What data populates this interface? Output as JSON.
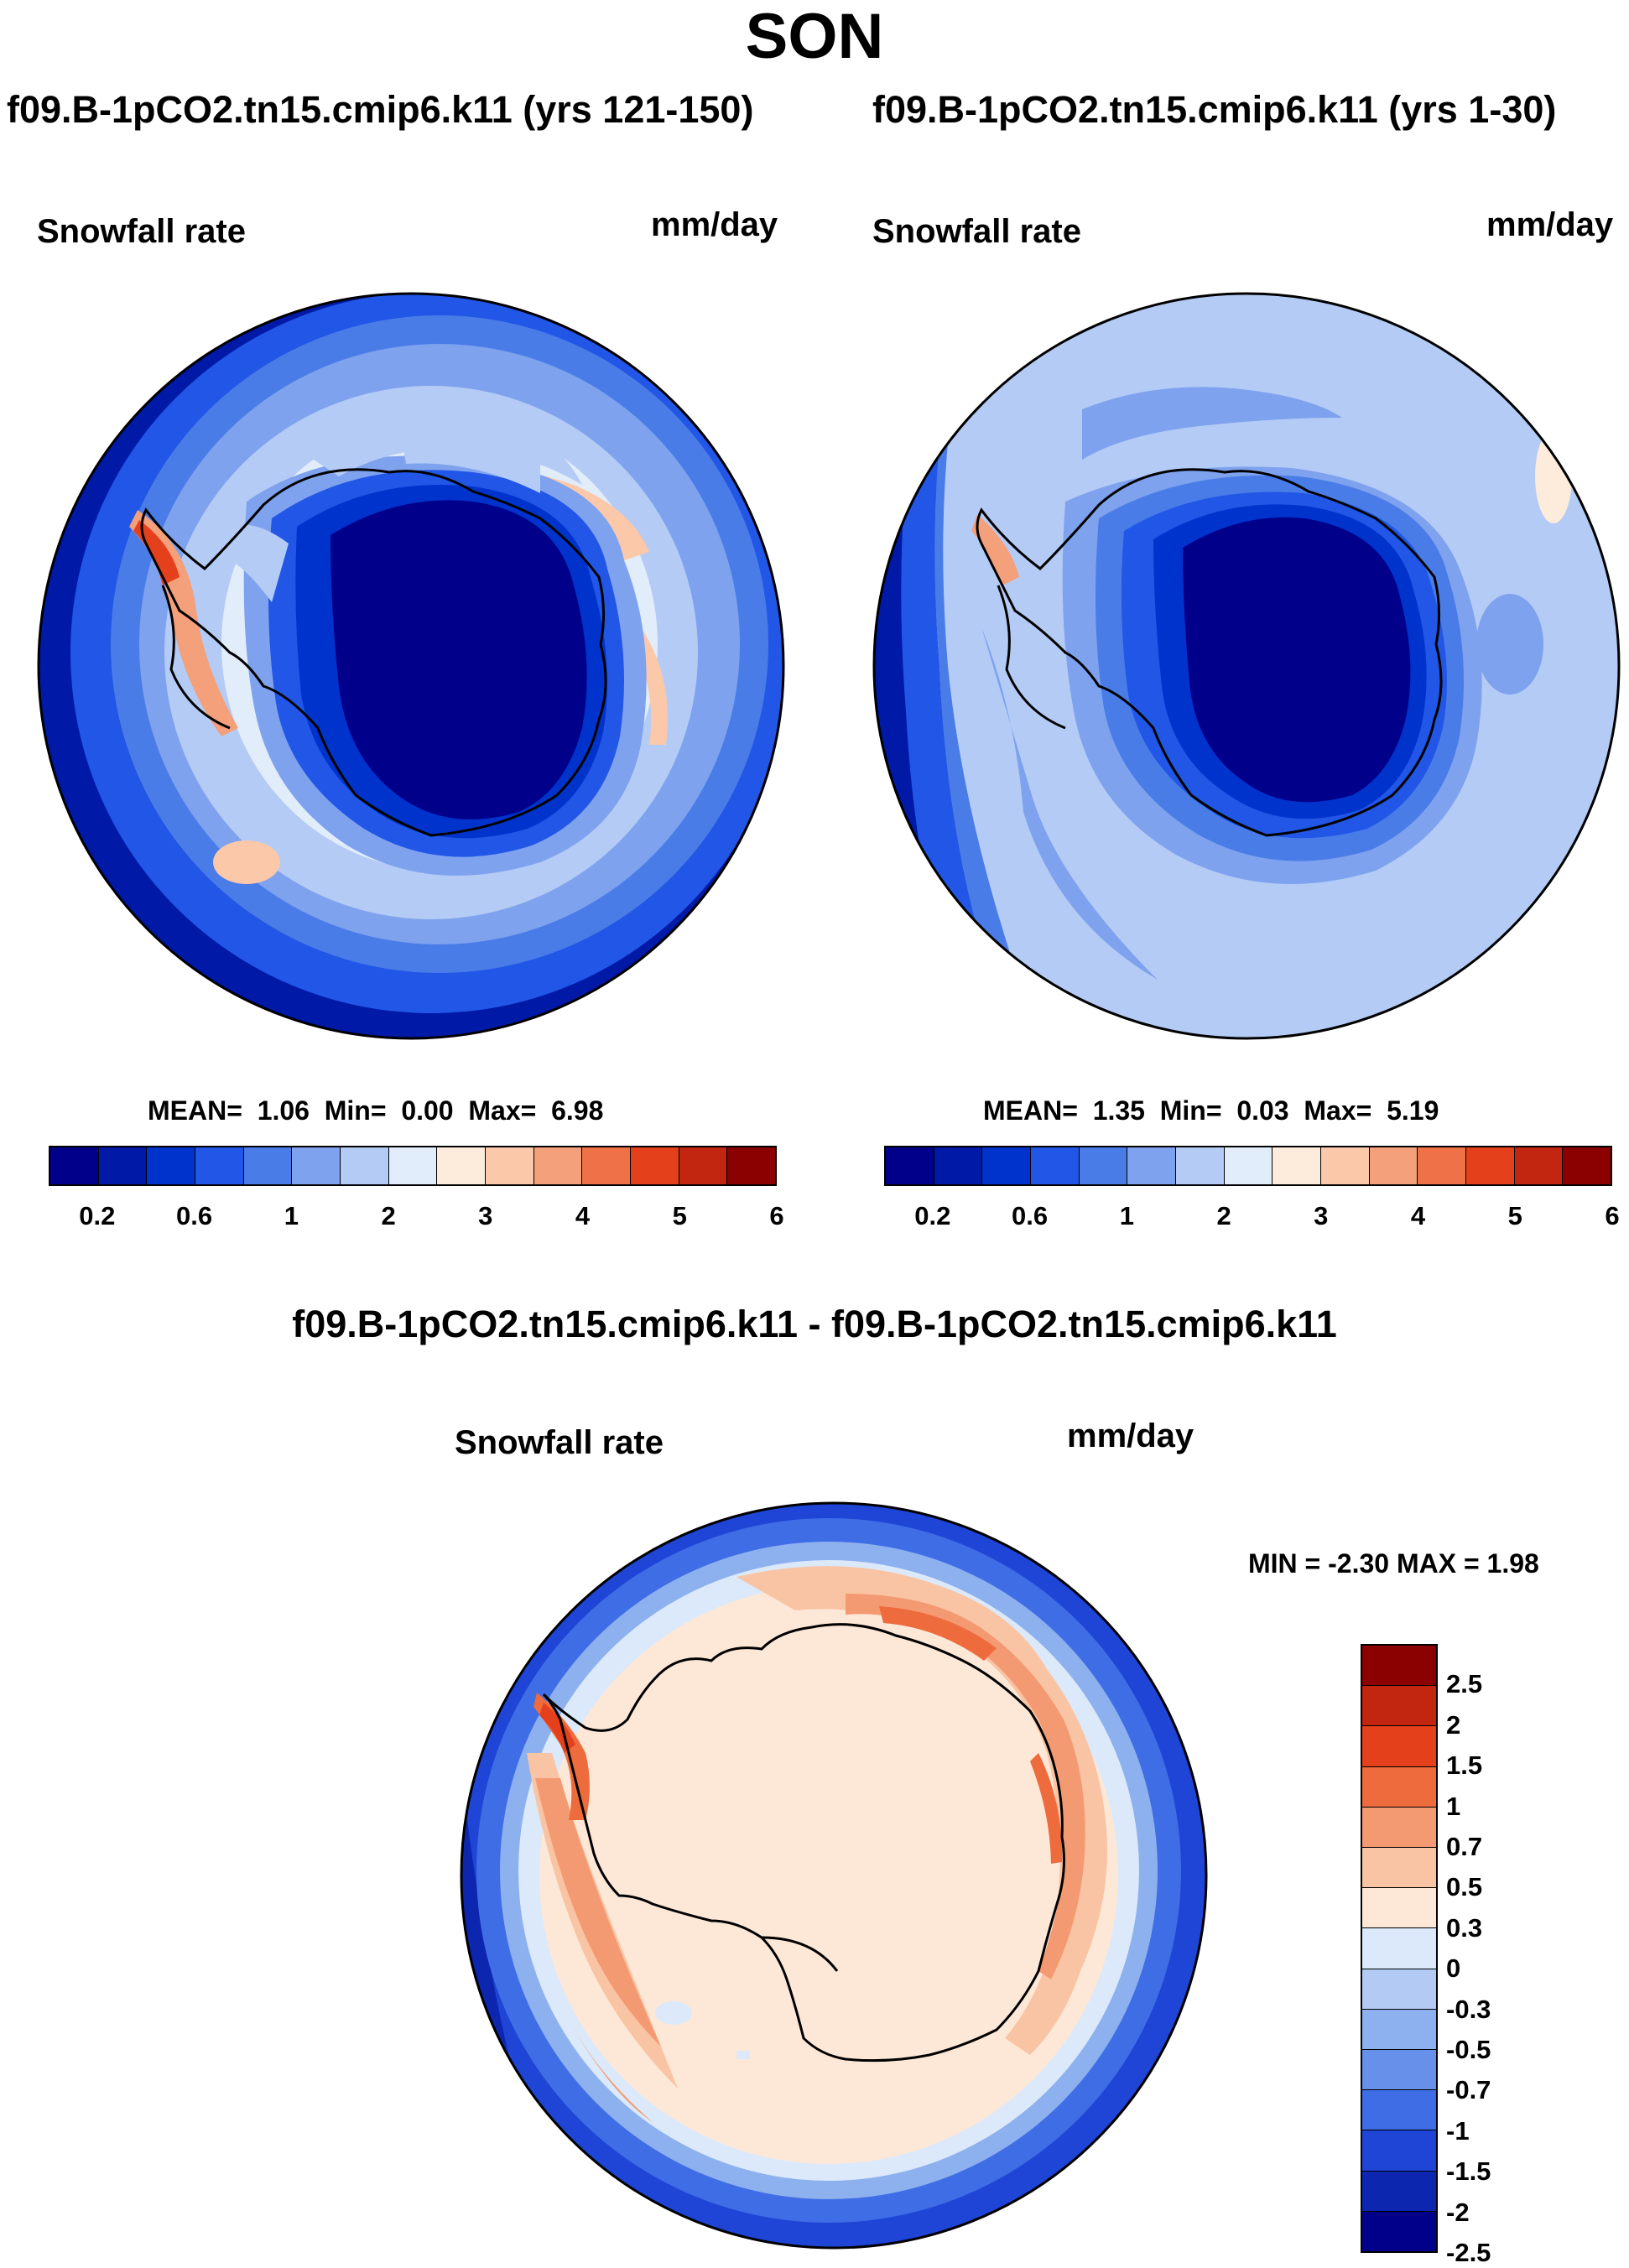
{
  "title": "SON",
  "panels": [
    {
      "title": "f09.B-1pCO2.tn15.cmip6.k11 (yrs 121-150)",
      "variable": "Snowfall rate",
      "units": "mm/day",
      "stats": {
        "mean_label": "MEAN=",
        "mean": "1.06",
        "min_label": "Min=",
        "min": "0.00",
        "max_label": "Max=",
        "max": "6.98"
      }
    },
    {
      "title": "f09.B-1pCO2.tn15.cmip6.k11 (yrs 1-30)",
      "variable": "Snowfall rate",
      "units": "mm/day",
      "stats": {
        "mean_label": "MEAN=",
        "mean": "1.35",
        "min_label": "Min=",
        "min": "0.03",
        "max_label": "Max=",
        "max": "5.19"
      }
    }
  ],
  "abs_colorbar": {
    "colors": [
      "#00008b",
      "#0019a6",
      "#0033cc",
      "#2156e6",
      "#4a7ce8",
      "#7ea2ee",
      "#b4cbf5",
      "#e1edfb",
      "#fdebdc",
      "#fbc8a9",
      "#f4a07b",
      "#ee7148",
      "#e5401c",
      "#c22610",
      "#8b0000"
    ],
    "ticks": [
      "0.2",
      "0.6",
      "1",
      "2",
      "3",
      "4",
      "5",
      "6"
    ]
  },
  "diff_panel": {
    "title": "f09.B-1pCO2.tn15.cmip6.k11 - f09.B-1pCO2.tn15.cmip6.k11",
    "variable": "Snowfall rate",
    "units": "mm/day",
    "minmax_label": "MIN =  -2.30 MAX =   1.98"
  },
  "diff_colorbar": {
    "colors": [
      "#8b0000",
      "#c22610",
      "#e5401c",
      "#ee6b3d",
      "#f49a72",
      "#f9c4a3",
      "#fde8d8",
      "#dbe9fa",
      "#b3cbf4",
      "#8db0ef",
      "#6690e9",
      "#3f6de5",
      "#1e45d6",
      "#0c26b0",
      "#00008b"
    ],
    "ticks": [
      "2.5",
      "2",
      "1.5",
      "1",
      "0.7",
      "0.5",
      "0.3",
      "0",
      "-0.3",
      "-0.5",
      "-0.7",
      "-1",
      "-1.5",
      "-2",
      "-2.5"
    ]
  }
}
